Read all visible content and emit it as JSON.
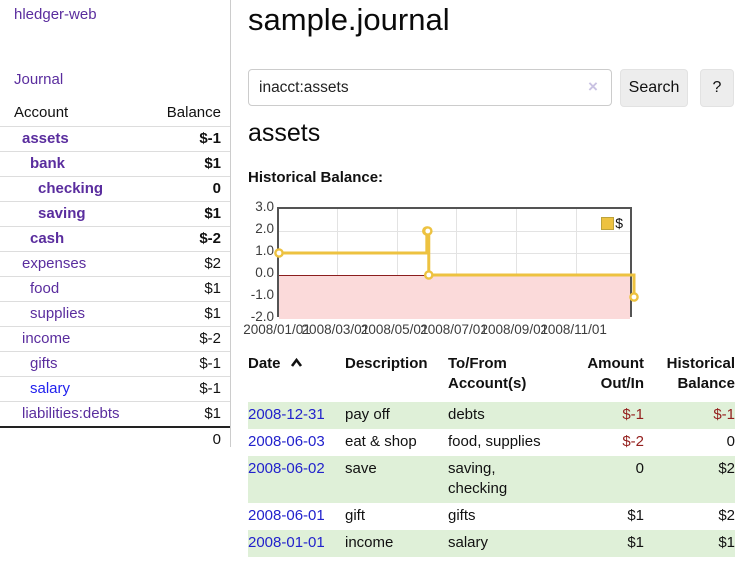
{
  "sidebar": {
    "brand": "hledger-web",
    "nav_journal": "Journal",
    "accounts": {
      "header": {
        "account": "Account",
        "balance": "Balance"
      },
      "rows": [
        {
          "name": "assets",
          "depth": 1,
          "bold": true,
          "balance": "$-1",
          "neg": "strong"
        },
        {
          "name": "bank",
          "depth": 2,
          "bold": true,
          "balance": "$1"
        },
        {
          "name": "checking",
          "depth": 3,
          "bold": true,
          "balance": "0"
        },
        {
          "name": "saving",
          "depth": 3,
          "bold": true,
          "balance": "$1"
        },
        {
          "name": "cash",
          "depth": 2,
          "bold": true,
          "balance": "$-2",
          "neg": "strong"
        },
        {
          "name": "expenses",
          "depth": 1,
          "bold": false,
          "balance": "$2"
        },
        {
          "name": "food",
          "depth": 2,
          "bold": false,
          "balance": "$1"
        },
        {
          "name": "supplies",
          "depth": 2,
          "bold": false,
          "balance": "$1"
        },
        {
          "name": "income",
          "depth": 1,
          "bold": false,
          "balance": "$-2",
          "neg": "dim"
        },
        {
          "name": "gifts",
          "depth": 2,
          "bold": false,
          "balance": "$-1",
          "neg": "dim"
        },
        {
          "name": "salary",
          "depth": 2,
          "bold": false,
          "balance": "$-1",
          "neg": "dim",
          "link": "blue"
        },
        {
          "name": "liabilities:debts",
          "depth": 1,
          "bold": false,
          "balance": "$1"
        }
      ],
      "total": "0"
    }
  },
  "header": {
    "title": "sample.journal"
  },
  "search": {
    "value": "inacct:assets",
    "clear_label": "×",
    "button_label": "Search",
    "help_label": "?"
  },
  "register": {
    "heading": "assets",
    "chart_title": "Historical Balance:",
    "columns": {
      "date": "Date",
      "description": "Description",
      "accounts": "To/From Account(s)",
      "amount": "Amount Out/In",
      "balance": "Historical Balance"
    },
    "rows": [
      {
        "date": "2008-12-31",
        "description": "pay off",
        "accounts": "debts",
        "amount": "$-1",
        "amount_neg": true,
        "balance": "$-1",
        "balance_neg": true,
        "shaded": true
      },
      {
        "date": "2008-06-03",
        "description": "eat & shop",
        "accounts": "food, supplies",
        "amount": "$-2",
        "amount_neg": true,
        "balance": "0",
        "balance_neg": false,
        "shaded": false
      },
      {
        "date": "2008-06-02",
        "description": "save",
        "accounts": "saving, checking",
        "amount": "0",
        "amount_neg": false,
        "balance": "$2",
        "balance_neg": false,
        "shaded": true
      },
      {
        "date": "2008-06-01",
        "description": "gift",
        "accounts": "gifts",
        "amount": "$1",
        "amount_neg": false,
        "balance": "$2",
        "balance_neg": false,
        "shaded": false
      },
      {
        "date": "2008-01-01",
        "description": "income",
        "accounts": "salary",
        "amount": "$1",
        "amount_neg": false,
        "balance": "$1",
        "balance_neg": false,
        "shaded": true
      }
    ]
  },
  "chart_data": {
    "type": "line",
    "step": true,
    "title": "Historical Balance:",
    "series": [
      {
        "name": "$",
        "color": "#edc240",
        "points": [
          [
            "2008-01-01",
            1
          ],
          [
            "2008-06-01",
            2
          ],
          [
            "2008-06-02",
            2
          ],
          [
            "2008-06-03",
            0
          ],
          [
            "2008-12-31",
            -1
          ]
        ]
      }
    ],
    "x_range": [
      "2008-01-01",
      "2008-12-31"
    ],
    "ylim": [
      -2,
      3
    ],
    "y_ticks": [
      "3.0",
      "2.0",
      "1.0",
      "0.0",
      "-1.0",
      "-2.0"
    ],
    "x_ticks": [
      "2008/01/01",
      "2008/03/01",
      "2008/05/01",
      "2008/07/01",
      "2008/09/01",
      "2008/11/01"
    ],
    "grid": true,
    "legend_position": "top-right",
    "negative_region_color": "#fbdada",
    "zero_line_color": "#8b1e1e"
  },
  "colors": {
    "account_link": "#5a2d9e",
    "date_link": "#2222cc",
    "negative_strong": "#94201e",
    "negative_dim": "#c48888",
    "row_shade": "#dff0d8",
    "series_gold": "#edc240",
    "negative_region": "#fbdada"
  }
}
